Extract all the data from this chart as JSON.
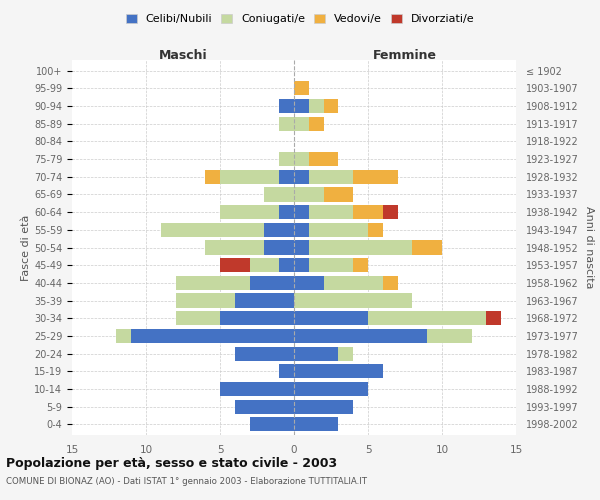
{
  "age_groups": [
    "0-4",
    "5-9",
    "10-14",
    "15-19",
    "20-24",
    "25-29",
    "30-34",
    "35-39",
    "40-44",
    "45-49",
    "50-54",
    "55-59",
    "60-64",
    "65-69",
    "70-74",
    "75-79",
    "80-84",
    "85-89",
    "90-94",
    "95-99",
    "100+"
  ],
  "birth_years": [
    "1998-2002",
    "1993-1997",
    "1988-1992",
    "1983-1987",
    "1978-1982",
    "1973-1977",
    "1968-1972",
    "1963-1967",
    "1958-1962",
    "1953-1957",
    "1948-1952",
    "1943-1947",
    "1938-1942",
    "1933-1937",
    "1928-1932",
    "1923-1927",
    "1918-1922",
    "1913-1917",
    "1908-1912",
    "1903-1907",
    "≤ 1902"
  ],
  "male": {
    "celibi": [
      3,
      4,
      5,
      1,
      4,
      11,
      5,
      4,
      3,
      1,
      2,
      2,
      1,
      0,
      1,
      0,
      0,
      0,
      1,
      0,
      0
    ],
    "coniugati": [
      0,
      0,
      0,
      0,
      0,
      1,
      3,
      4,
      5,
      2,
      4,
      7,
      4,
      2,
      4,
      1,
      0,
      1,
      0,
      0,
      0
    ],
    "vedovi": [
      0,
      0,
      0,
      0,
      0,
      0,
      0,
      0,
      0,
      0,
      0,
      0,
      0,
      0,
      1,
      0,
      0,
      0,
      0,
      0,
      0
    ],
    "divorziati": [
      0,
      0,
      0,
      0,
      0,
      0,
      0,
      0,
      0,
      2,
      0,
      0,
      0,
      0,
      0,
      0,
      0,
      0,
      0,
      0,
      0
    ]
  },
  "female": {
    "nubili": [
      3,
      4,
      5,
      6,
      3,
      9,
      5,
      0,
      2,
      1,
      1,
      1,
      1,
      0,
      1,
      0,
      0,
      0,
      1,
      0,
      0
    ],
    "coniugate": [
      0,
      0,
      0,
      0,
      1,
      3,
      8,
      8,
      4,
      3,
      7,
      4,
      3,
      2,
      3,
      1,
      0,
      1,
      1,
      0,
      0
    ],
    "vedove": [
      0,
      0,
      0,
      0,
      0,
      0,
      0,
      0,
      1,
      1,
      2,
      1,
      2,
      2,
      3,
      2,
      0,
      1,
      1,
      1,
      0
    ],
    "divorziate": [
      0,
      0,
      0,
      0,
      0,
      0,
      1,
      0,
      0,
      0,
      0,
      0,
      1,
      0,
      0,
      0,
      0,
      0,
      0,
      0,
      0
    ]
  },
  "color_celibi": "#4472c4",
  "color_coniugati": "#c5d9a0",
  "color_vedovi": "#f0b040",
  "color_divorziati": "#c0392b",
  "title": "Popolazione per età, sesso e stato civile - 2003",
  "subtitle": "COMUNE DI BIONAZ (AO) - Dati ISTAT 1° gennaio 2003 - Elaborazione TUTTITALIA.IT",
  "xlabel_left": "Maschi",
  "xlabel_right": "Femmine",
  "ylabel_left": "Fasce di età",
  "ylabel_right": "Anni di nascita",
  "xlim": 15,
  "legend_labels": [
    "Celibi/Nubili",
    "Coniugati/e",
    "Vedovi/e",
    "Divorziati/e"
  ],
  "bg_color": "#f5f5f5",
  "plot_bg_color": "#ffffff"
}
